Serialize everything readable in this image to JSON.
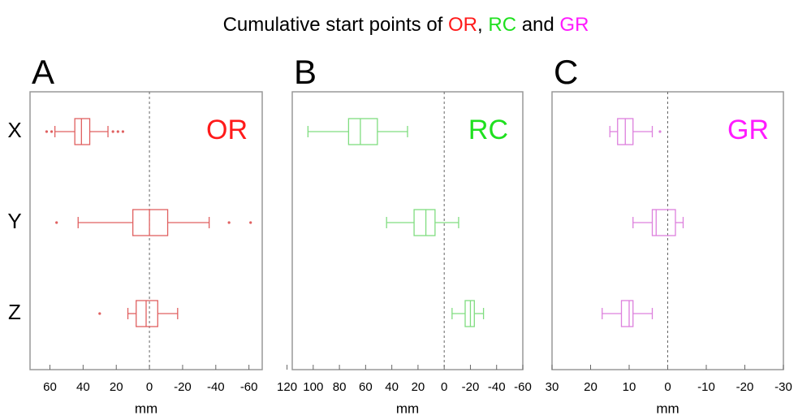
{
  "title": [
    {
      "text": "Cumulative start points of ",
      "color": "#000000"
    },
    {
      "text": "OR",
      "color": "#ff1a1a"
    },
    {
      "text": ", ",
      "color": "#000000"
    },
    {
      "text": "RC",
      "color": "#1fe01f"
    },
    {
      "text": " and ",
      "color": "#000000"
    },
    {
      "text": "GR",
      "color": "#ff1aff"
    }
  ],
  "chart_data": [
    {
      "type": "boxplot",
      "panel_label": "A",
      "label": "OR",
      "label_color": "#ff1a1a",
      "color": "#e06060",
      "categories": [
        "X",
        "Y",
        "Z"
      ],
      "boxes": [
        {
          "min": 25,
          "q1": 36,
          "median": 41,
          "q3": 45,
          "max": 57,
          "outliers": [
            62,
            59,
            22,
            19,
            16
          ]
        },
        {
          "min": -36,
          "q1": -11,
          "median": 0,
          "q3": 10,
          "max": 43,
          "outliers": [
            56,
            -48,
            -61
          ]
        },
        {
          "min": -17,
          "q1": -5,
          "median": 2,
          "q3": 8,
          "max": 13,
          "outliers": [
            30
          ]
        }
      ],
      "xlim": [
        72,
        -68
      ],
      "xticks": [
        60,
        40,
        20,
        0,
        -20,
        -40,
        -60
      ],
      "xlabel": "mm",
      "ref_line": 0
    },
    {
      "type": "boxplot",
      "panel_label": "B",
      "label": "RC",
      "label_color": "#1fe01f",
      "color": "#80dd80",
      "boxes": [
        {
          "min": 28,
          "q1": 51,
          "median": 64,
          "q3": 73,
          "max": 104,
          "outliers": []
        },
        {
          "min": -11,
          "q1": 7,
          "median": 14,
          "q3": 23,
          "max": 44,
          "outliers": []
        },
        {
          "min": -30,
          "q1": -23,
          "median": -20,
          "q3": -16,
          "max": -6,
          "outliers": []
        }
      ],
      "xlim": [
        116,
        -60
      ],
      "xticks": [
        120,
        100,
        80,
        60,
        40,
        20,
        0,
        -20,
        -40,
        -60
      ],
      "xlabel": "mm",
      "ref_line": 0
    },
    {
      "type": "boxplot",
      "panel_label": "C",
      "label": "GR",
      "label_color": "#ff1aff",
      "color": "#dd80dd",
      "boxes": [
        {
          "min": 4,
          "q1": 9,
          "median": 11,
          "q3": 13,
          "max": 15,
          "outliers": [
            2
          ]
        },
        {
          "min": -4,
          "q1": -2,
          "median": 3,
          "q3": 4,
          "max": 9,
          "outliers": []
        },
        {
          "min": 4,
          "q1": 9,
          "median": 10,
          "q3": 12,
          "max": 17,
          "outliers": []
        }
      ],
      "xlim": [
        30,
        -30
      ],
      "xticks": [
        30,
        20,
        10,
        0,
        -10,
        -20,
        -30
      ],
      "xlabel": "mm",
      "ref_line": 0
    }
  ]
}
